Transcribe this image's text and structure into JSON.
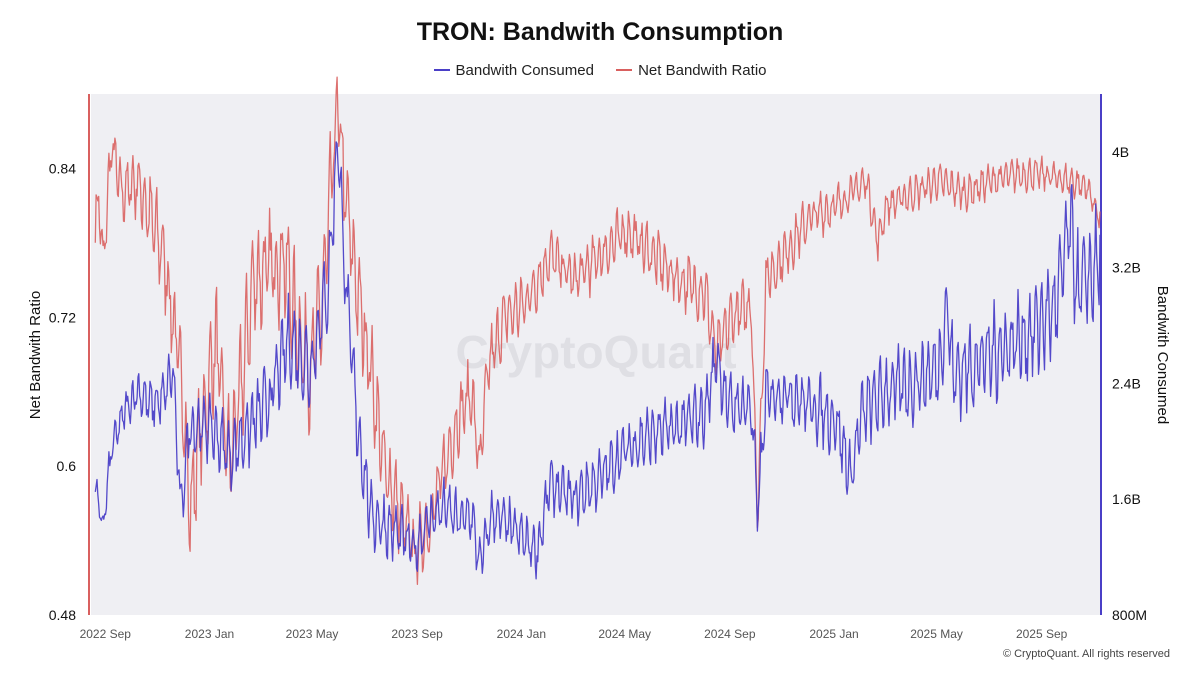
{
  "chart_data": {
    "type": "line",
    "title": "TRON: Bandwith Consumption",
    "watermark": "CryptoQuant",
    "copyright": "© CryptoQuant. All rights reserved",
    "colors": {
      "bandwidth_consumed": "#4a3fc7",
      "net_bandwidth_ratio": "#d9605f",
      "plot_background": "#efeff3"
    },
    "x_axis": {
      "start": "2022-08-27",
      "end": "2025-11-20",
      "ticks": [
        {
          "label": "2022 Sep",
          "date": "2022-09-01"
        },
        {
          "label": "2023 Jan",
          "date": "2023-01-01"
        },
        {
          "label": "2023 May",
          "date": "2023-05-01"
        },
        {
          "label": "2023 Sep",
          "date": "2023-09-01"
        },
        {
          "label": "2024 Jan",
          "date": "2024-01-01"
        },
        {
          "label": "2024 May",
          "date": "2024-05-01"
        },
        {
          "label": "2024 Sep",
          "date": "2024-09-01"
        },
        {
          "label": "2025 Jan",
          "date": "2025-01-01"
        },
        {
          "label": "2025 May",
          "date": "2025-05-01"
        },
        {
          "label": "2025 Sep",
          "date": "2025-09-01"
        }
      ]
    },
    "left_axis": {
      "label": "Net Bandwith Ratio",
      "min": 0.48,
      "max": 0.9,
      "ticks": [
        {
          "value": 0.48,
          "label": "0.48"
        },
        {
          "value": 0.6,
          "label": "0.6"
        },
        {
          "value": 0.72,
          "label": "0.72"
        },
        {
          "value": 0.84,
          "label": "0.84"
        }
      ]
    },
    "right_axis": {
      "label": "Bandwith Consumed",
      "min": 800000000,
      "max": 4400000000,
      "ticks": [
        {
          "value": 800000000,
          "label": "800M"
        },
        {
          "value": 1600000000,
          "label": "1.6B"
        },
        {
          "value": 2400000000,
          "label": "2.4B"
        },
        {
          "value": 3200000000,
          "label": "3.2B"
        },
        {
          "value": 4000000000,
          "label": "4B"
        }
      ]
    },
    "series": [
      {
        "name": "Bandwith Consumed",
        "axis": "right",
        "unit": "bytes",
        "approximate_path": [
          [
            "2022-09-01",
            1680000000
          ],
          [
            "2022-09-10",
            1400000000
          ],
          [
            "2022-09-20",
            1950000000
          ],
          [
            "2022-10-05",
            2200000000
          ],
          [
            "2022-10-20",
            2350000000
          ],
          [
            "2022-11-05",
            2250000000
          ],
          [
            "2022-11-20",
            2300000000
          ],
          [
            "2022-12-01",
            2500000000
          ],
          [
            "2022-12-10",
            1500000000
          ],
          [
            "2022-12-20",
            2100000000
          ],
          [
            "2023-01-15",
            2100000000
          ],
          [
            "2023-02-05",
            1900000000
          ],
          [
            "2023-03-01",
            2100000000
          ],
          [
            "2023-03-25",
            2300000000
          ],
          [
            "2023-04-15",
            2700000000
          ],
          [
            "2023-05-10",
            2500000000
          ],
          [
            "2023-06-01",
            3100000000
          ],
          [
            "2023-06-12",
            4100000000
          ],
          [
            "2023-06-22",
            3000000000
          ],
          [
            "2023-07-05",
            2100000000
          ],
          [
            "2023-07-20",
            1500000000
          ],
          [
            "2023-08-10",
            1400000000
          ],
          [
            "2023-08-25",
            1350000000
          ],
          [
            "2023-09-10",
            1250000000
          ],
          [
            "2023-09-25",
            1450000000
          ],
          [
            "2023-10-15",
            1550000000
          ],
          [
            "2023-11-01",
            1450000000
          ],
          [
            "2023-11-15",
            1500000000
          ],
          [
            "2023-11-25",
            1150000000
          ],
          [
            "2023-12-10",
            1500000000
          ],
          [
            "2024-01-01",
            1400000000
          ],
          [
            "2024-01-20",
            1300000000
          ],
          [
            "2024-02-01",
            1250000000
          ],
          [
            "2024-02-15",
            1700000000
          ],
          [
            "2024-03-15",
            1600000000
          ],
          [
            "2024-04-15",
            1750000000
          ],
          [
            "2024-05-15",
            1950000000
          ],
          [
            "2024-06-15",
            2050000000
          ],
          [
            "2024-07-15",
            2100000000
          ],
          [
            "2024-08-15",
            2200000000
          ],
          [
            "2024-08-28",
            2600000000
          ],
          [
            "2024-09-10",
            2250000000
          ],
          [
            "2024-10-08",
            2250000000
          ],
          [
            "2024-10-15",
            1500000000
          ],
          [
            "2024-10-25",
            2300000000
          ],
          [
            "2024-11-15",
            2350000000
          ],
          [
            "2024-12-15",
            2250000000
          ],
          [
            "2025-01-15",
            2150000000
          ],
          [
            "2025-02-01",
            1750000000
          ],
          [
            "2025-02-15",
            2200000000
          ],
          [
            "2025-03-15",
            2350000000
          ],
          [
            "2025-04-15",
            2400000000
          ],
          [
            "2025-05-15",
            2500000000
          ],
          [
            "2025-05-25",
            2950000000
          ],
          [
            "2025-06-01",
            2450000000
          ],
          [
            "2025-07-01",
            2550000000
          ],
          [
            "2025-08-01",
            2650000000
          ],
          [
            "2025-09-01",
            2750000000
          ],
          [
            "2025-10-01",
            2950000000
          ],
          [
            "2025-10-15",
            3500000000
          ],
          [
            "2025-10-25",
            3050000000
          ],
          [
            "2025-11-05",
            3100000000
          ],
          [
            "2025-11-15",
            3200000000
          ],
          [
            "2025-11-20",
            3300000000
          ]
        ],
        "swing": [
          [
            "2022-09-01",
            90000000
          ],
          [
            "2023-02-01",
            200000000
          ],
          [
            "2023-06-01",
            250000000
          ],
          [
            "2023-09-01",
            150000000
          ],
          [
            "2024-03-01",
            150000000
          ],
          [
            "2024-09-01",
            180000000
          ],
          [
            "2025-03-01",
            200000000
          ],
          [
            "2025-09-01",
            280000000
          ],
          [
            "2025-11-20",
            320000000
          ]
        ]
      },
      {
        "name": "Net Bandwith Ratio",
        "axis": "left",
        "unit": "ratio",
        "approximate_path": [
          [
            "2022-09-01",
            0.79
          ],
          [
            "2022-09-05",
            0.82
          ],
          [
            "2022-09-10",
            0.76
          ],
          [
            "2022-09-20",
            0.86
          ],
          [
            "2022-10-01",
            0.82
          ],
          [
            "2022-10-20",
            0.83
          ],
          [
            "2022-11-05",
            0.8
          ],
          [
            "2022-11-20",
            0.77
          ],
          [
            "2022-12-05",
            0.7
          ],
          [
            "2022-12-15",
            0.64
          ],
          [
            "2022-12-20",
            0.56
          ],
          [
            "2023-01-01",
            0.62
          ],
          [
            "2023-01-20",
            0.7
          ],
          [
            "2023-02-05",
            0.6
          ],
          [
            "2023-02-20",
            0.67
          ],
          [
            "2023-03-05",
            0.75
          ],
          [
            "2023-03-25",
            0.76
          ],
          [
            "2023-04-10",
            0.77
          ],
          [
            "2023-04-25",
            0.71
          ],
          [
            "2023-05-10",
            0.68
          ],
          [
            "2023-05-25",
            0.73
          ],
          [
            "2023-06-08",
            0.86
          ],
          [
            "2023-06-12",
            0.89
          ],
          [
            "2023-06-20",
            0.82
          ],
          [
            "2023-07-05",
            0.74
          ],
          [
            "2023-07-20",
            0.68
          ],
          [
            "2023-08-05",
            0.6
          ],
          [
            "2023-08-25",
            0.56
          ],
          [
            "2023-09-10",
            0.53
          ],
          [
            "2023-09-25",
            0.55
          ],
          [
            "2023-10-15",
            0.6
          ],
          [
            "2023-11-01",
            0.64
          ],
          [
            "2023-11-15",
            0.66
          ],
          [
            "2023-11-25",
            0.6
          ],
          [
            "2023-12-05",
            0.68
          ],
          [
            "2023-12-25",
            0.72
          ],
          [
            "2024-01-15",
            0.73
          ],
          [
            "2024-02-01",
            0.75
          ],
          [
            "2024-02-15",
            0.77
          ],
          [
            "2024-03-15",
            0.75
          ],
          [
            "2024-04-15",
            0.77
          ],
          [
            "2024-05-15",
            0.79
          ],
          [
            "2024-06-15",
            0.77
          ],
          [
            "2024-07-15",
            0.75
          ],
          [
            "2024-08-15",
            0.74
          ],
          [
            "2024-08-28",
            0.69
          ],
          [
            "2024-09-15",
            0.72
          ],
          [
            "2024-10-08",
            0.73
          ],
          [
            "2024-10-15",
            0.56
          ],
          [
            "2024-10-25",
            0.75
          ],
          [
            "2024-11-15",
            0.77
          ],
          [
            "2024-12-15",
            0.8
          ],
          [
            "2025-01-15",
            0.81
          ],
          [
            "2025-02-01",
            0.82
          ],
          [
            "2025-02-20",
            0.83
          ],
          [
            "2025-03-05",
            0.78
          ],
          [
            "2025-03-15",
            0.81
          ],
          [
            "2025-04-15",
            0.82
          ],
          [
            "2025-05-15",
            0.83
          ],
          [
            "2025-06-15",
            0.82
          ],
          [
            "2025-07-15",
            0.83
          ],
          [
            "2025-08-15",
            0.835
          ],
          [
            "2025-09-15",
            0.835
          ],
          [
            "2025-10-15",
            0.83
          ],
          [
            "2025-11-05",
            0.825
          ],
          [
            "2025-11-20",
            0.8
          ]
        ],
        "swing": [
          [
            "2022-09-01",
            0.018
          ],
          [
            "2023-02-01",
            0.04
          ],
          [
            "2023-06-01",
            0.04
          ],
          [
            "2023-09-01",
            0.025
          ],
          [
            "2024-03-01",
            0.018
          ],
          [
            "2024-09-01",
            0.02
          ],
          [
            "2025-03-01",
            0.012
          ],
          [
            "2025-11-20",
            0.01
          ]
        ]
      }
    ]
  }
}
